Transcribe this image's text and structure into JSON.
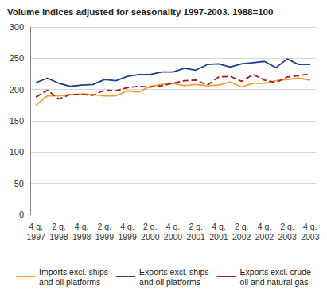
{
  "chart_data": {
    "type": "line",
    "title": "Volume indices adjusted for seasonality 1997-2003. 1988=100",
    "categories": [
      "4 q.\n1997",
      null,
      "2 q.\n1998",
      null,
      "4 q.\n1998",
      null,
      "2 q.\n1999",
      null,
      "4 q.\n1999",
      null,
      "2 q.\n2000",
      null,
      "4 q.\n2000",
      null,
      "2 q.\n2001",
      null,
      "4 q.\n2001",
      null,
      "2 q.\n2002",
      null,
      "4 q.\n2002",
      null,
      "2 q.\n2003",
      null,
      "4 q.\n2003"
    ],
    "series": [
      {
        "name": "Imports excl. ships and oil platforms",
        "color": "#f0a030",
        "line_style": "solid",
        "values": [
          175,
          190,
          190,
          192,
          193,
          192,
          190,
          190,
          198,
          196,
          205,
          208,
          210,
          206,
          208,
          206,
          207,
          212,
          204,
          210,
          210,
          214,
          216,
          218,
          215
        ]
      },
      {
        "name": "Exports excl. ships and oil platforms",
        "color": "#1f3f8f",
        "line_style": "solid",
        "values": [
          211,
          218,
          210,
          205,
          207,
          208,
          216,
          214,
          221,
          224,
          224,
          228,
          228,
          234,
          231,
          240,
          241,
          236,
          241,
          243,
          245,
          235,
          249,
          240,
          240
        ]
      },
      {
        "name": "Exports excl. crude oil and natural gas",
        "color": "#a0202a",
        "line_style": "dashed",
        "values": [
          188,
          199,
          185,
          192,
          192,
          191,
          199,
          198,
          203,
          205,
          204,
          206,
          210,
          214,
          215,
          207,
          220,
          221,
          213,
          224,
          215,
          211,
          220,
          222,
          225
        ]
      }
    ],
    "ylim": [
      0,
      300
    ],
    "yticks": [
      0,
      50,
      100,
      150,
      200,
      250,
      300
    ],
    "grid": true,
    "legend": "bottom"
  }
}
